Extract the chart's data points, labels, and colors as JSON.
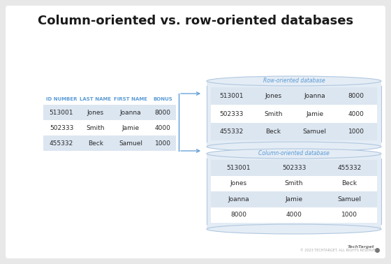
{
  "title": "Column-oriented vs. row-oriented databases",
  "bg_color": "#e8e8e8",
  "card_bg": "#ffffff",
  "title_color": "#1a1a1a",
  "header_color": "#5b9bd5",
  "row_alt": "#dce6f1",
  "row_white": "#ffffff",
  "cyl_bg": "#e4ecf5",
  "cyl_edge": "#b0c8e0",
  "arrow_color": "#5b9bd5",
  "text_dark": "#2a2a2a",
  "left_table": {
    "headers": [
      "ID NUMBER",
      "LAST NAME",
      "FIRST NAME",
      "BONUS"
    ],
    "rows": [
      [
        "513001",
        "Jones",
        "Joanna",
        "8000"
      ],
      [
        "502333",
        "Smith",
        "Jamie",
        "4000"
      ],
      [
        "455332",
        "Beck",
        "Samuel",
        "1000"
      ]
    ]
  },
  "row_db": {
    "label": "Row-oriented database",
    "rows": [
      [
        "513001",
        "Jones",
        "Joanna",
        "8000"
      ],
      [
        "502333",
        "Smith",
        "Jamie",
        "4000"
      ],
      [
        "455332",
        "Beck",
        "Samuel",
        "1000"
      ]
    ]
  },
  "col_db": {
    "label": "Column-oriented database",
    "rows": [
      [
        "513001",
        "502333",
        "455332"
      ],
      [
        "Jones",
        "Smith",
        "Beck"
      ],
      [
        "Joanna",
        "Jamie",
        "Samuel"
      ],
      [
        "8000",
        "4000",
        "1000"
      ]
    ]
  },
  "footer": "© 2023 TECHTARGET. ALL RIGHTS RESERVED.",
  "title_fontsize": 13,
  "header_fontsize": 5,
  "cell_fontsize": 6.5,
  "label_fontsize": 5.5
}
